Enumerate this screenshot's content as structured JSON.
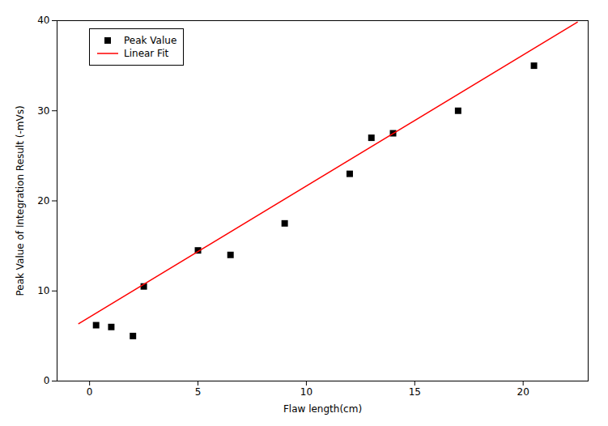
{
  "chart_data": {
    "type": "scatter",
    "xlabel": "Flaw length(cm)",
    "ylabel": "Peak Value of Integration Result (-mVs)",
    "xlim": [
      -1.5,
      23
    ],
    "ylim": [
      0,
      40
    ],
    "xticks": [
      0,
      5,
      10,
      15,
      20
    ],
    "yticks": [
      0,
      10,
      20,
      30,
      40
    ],
    "legend": "upper left",
    "series": [
      {
        "name": "Peak Value",
        "type": "scatter",
        "color": "#000000",
        "marker": "square",
        "x": [
          0.3,
          1.0,
          2.0,
          2.5,
          5.0,
          6.5,
          9.0,
          12.0,
          13.0,
          14.0,
          17.0,
          20.5
        ],
        "values": [
          6.2,
          6.0,
          5.0,
          10.5,
          14.5,
          14.0,
          17.5,
          23.0,
          27.0,
          27.5,
          30.0,
          35.0
        ]
      },
      {
        "name": "Linear Fit",
        "type": "line",
        "color": "#ff0000",
        "x": [
          -0.5,
          22.5
        ],
        "values": [
          6.3725,
          39.8375
        ]
      }
    ]
  }
}
